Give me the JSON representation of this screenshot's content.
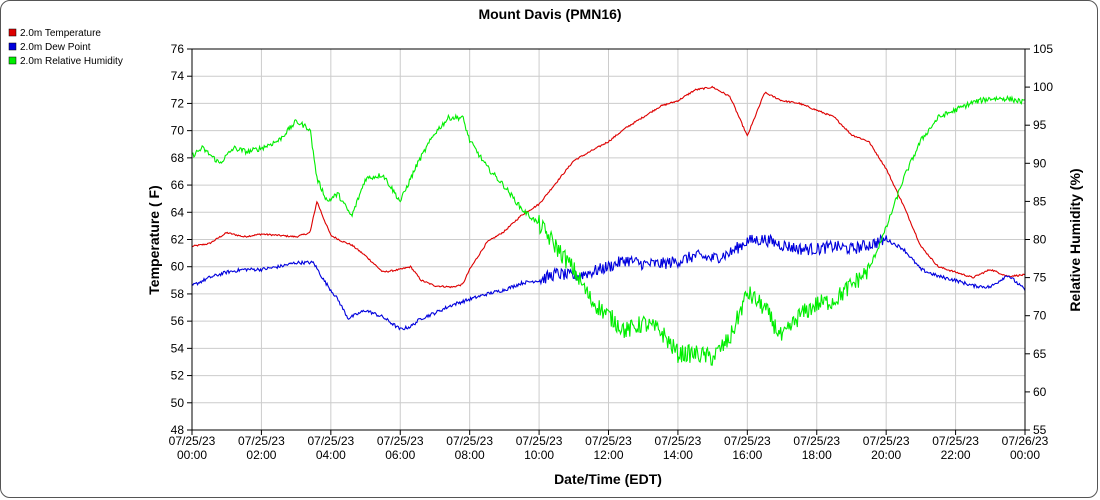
{
  "chart_data": {
    "type": "line",
    "title": "Mount Davis (PMN16)",
    "xlabel": "Date/Time (EDT)",
    "ylabel_left": "Temperature ( F)",
    "ylabel_right": "Relative Humidity (%)",
    "ylim_left": [
      48,
      76
    ],
    "ylim_right": [
      55,
      105
    ],
    "xlim_hours": [
      0,
      24
    ],
    "grid": true,
    "legend_position": "top-left",
    "x_ticks": [
      {
        "date": "07/25/23",
        "time": "00:00"
      },
      {
        "date": "07/25/23",
        "time": "02:00"
      },
      {
        "date": "07/25/23",
        "time": "04:00"
      },
      {
        "date": "07/25/23",
        "time": "06:00"
      },
      {
        "date": "07/25/23",
        "time": "08:00"
      },
      {
        "date": "07/25/23",
        "time": "10:00"
      },
      {
        "date": "07/25/23",
        "time": "12:00"
      },
      {
        "date": "07/25/23",
        "time": "14:00"
      },
      {
        "date": "07/25/23",
        "time": "16:00"
      },
      {
        "date": "07/25/23",
        "time": "18:00"
      },
      {
        "date": "07/25/23",
        "time": "20:00"
      },
      {
        "date": "07/25/23",
        "time": "22:00"
      },
      {
        "date": "07/26/23",
        "time": "00:00"
      }
    ],
    "y_ticks_left": [
      "48",
      "50",
      "52",
      "54",
      "56",
      "58",
      "60",
      "62",
      "64",
      "66",
      "68",
      "70",
      "72",
      "74",
      "76"
    ],
    "y_ticks_right": [
      "55",
      "60",
      "65",
      "70",
      "75",
      "80",
      "85",
      "90",
      "95",
      "100",
      "105"
    ],
    "series": [
      {
        "name": "2.0m Temperature",
        "axis": "left",
        "color": "#dd0000",
        "x": [
          0,
          0.5,
          1,
          1.5,
          2,
          2.5,
          3,
          3.4,
          3.6,
          3.8,
          4,
          4.3,
          4.6,
          5,
          5.5,
          6,
          6.3,
          6.6,
          7,
          7.5,
          7.8,
          8,
          8.5,
          9,
          9.5,
          10,
          10.5,
          11,
          11.5,
          12,
          12.5,
          13,
          13.5,
          14,
          14.5,
          15,
          15.5,
          16,
          16.5,
          17,
          17.5,
          18,
          18.5,
          19,
          19.5,
          20,
          20.5,
          21,
          21.5,
          22,
          22.5,
          23,
          23.5,
          24
        ],
        "y": [
          61.5,
          61.7,
          62.5,
          62.2,
          62.4,
          62.3,
          62.2,
          62.5,
          64.8,
          63.5,
          62.3,
          61.9,
          61.6,
          60.8,
          59.6,
          59.8,
          60.0,
          59.0,
          58.6,
          58.5,
          58.7,
          59.8,
          61.8,
          62.6,
          63.8,
          64.6,
          66.2,
          67.8,
          68.5,
          69.2,
          70.2,
          71.0,
          71.8,
          72.2,
          73.0,
          73.2,
          72.5,
          69.6,
          72.8,
          72.2,
          72.0,
          71.5,
          71.0,
          69.7,
          69.2,
          67.2,
          64.5,
          61.5,
          60.0,
          59.6,
          59.2,
          59.8,
          59.3,
          59.4
        ]
      },
      {
        "name": "2.0m Dew Point",
        "axis": "left",
        "color": "#0000dd",
        "x": [
          0,
          0.5,
          1,
          1.5,
          2,
          2.5,
          3,
          3.5,
          3.8,
          4.2,
          4.5,
          5,
          5.5,
          6,
          6.3,
          6.6,
          7,
          7.5,
          8,
          8.5,
          9,
          9.5,
          10,
          10.5,
          11,
          11.5,
          12,
          12.5,
          13,
          13.5,
          14,
          14.5,
          15,
          15.5,
          16,
          16.5,
          17,
          17.5,
          18,
          18.5,
          19,
          19.5,
          20,
          20.5,
          21,
          21.5,
          22,
          22.5,
          23,
          23.5,
          24
        ],
        "y": [
          58.6,
          59.2,
          59.6,
          59.8,
          59.8,
          60.0,
          60.3,
          60.3,
          59.0,
          57.6,
          56.2,
          56.8,
          56.3,
          55.4,
          55.6,
          56.2,
          56.6,
          57.2,
          57.6,
          58.0,
          58.3,
          58.8,
          59.0,
          59.5,
          59.3,
          59.6,
          60.0,
          60.5,
          60.2,
          60.2,
          60.4,
          60.8,
          60.6,
          61.0,
          61.9,
          62.0,
          61.6,
          61.3,
          61.3,
          61.5,
          61.3,
          61.6,
          62.0,
          61.3,
          59.8,
          59.3,
          59.0,
          58.6,
          58.5,
          59.4,
          58.3
        ]
      },
      {
        "name": "2.0m Relative Humidity",
        "axis": "right",
        "color": "#00ee00",
        "x": [
          0,
          0.3,
          0.8,
          1.2,
          1.6,
          2,
          2.5,
          3,
          3.4,
          3.6,
          3.9,
          4.2,
          4.6,
          5,
          5.5,
          6,
          6.5,
          7,
          7.4,
          7.8,
          8,
          8.5,
          9,
          9.5,
          10,
          10.5,
          11,
          11.5,
          12,
          12.5,
          13,
          13.5,
          14,
          14.5,
          15,
          15.5,
          16,
          16.5,
          17,
          17.5,
          18,
          18.5,
          19,
          19.5,
          20,
          20.5,
          21,
          21.5,
          22,
          22.5,
          23,
          23.5,
          24
        ],
        "y": [
          91,
          92,
          90,
          92,
          91.5,
          92,
          93,
          95.5,
          94.5,
          88,
          85,
          86,
          83,
          88,
          88.5,
          85,
          90,
          94,
          96,
          96,
          93,
          89.5,
          87,
          84,
          82,
          79,
          76,
          72,
          70,
          68,
          69,
          68,
          65,
          65,
          64.5,
          67,
          73,
          71,
          67,
          70,
          71.5,
          72,
          74,
          76,
          81.5,
          88,
          93,
          96,
          97,
          98,
          98.5,
          98.5,
          98
        ]
      }
    ]
  }
}
